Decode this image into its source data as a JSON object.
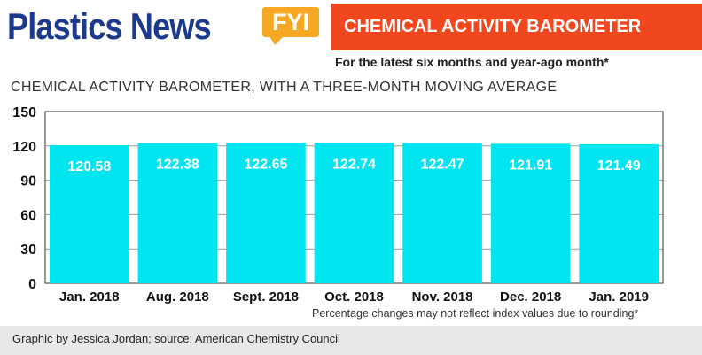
{
  "header": {
    "brand": "Plastics News",
    "badge": "FYI",
    "banner_title": "CHEMICAL ACTIVITY BAROMETER",
    "subtitle": "For the latest six months and year-ago month*"
  },
  "chart_data": {
    "type": "bar",
    "title": "CHEMICAL ACTIVITY BAROMETER, WITH A THREE-MONTH MOVING AVERAGE",
    "categories": [
      "Jan. 2018",
      "Aug. 2018",
      "Sept. 2018",
      "Oct. 2018",
      "Nov. 2018",
      "Dec. 2018",
      "Jan. 2019"
    ],
    "values": [
      120.58,
      122.38,
      122.65,
      122.74,
      122.47,
      121.91,
      121.49
    ],
    "value_labels": [
      "120.58",
      "122.38",
      "122.65",
      "122.74",
      "122.47",
      "121.91",
      "121.49"
    ],
    "yticks": [
      "150",
      "120",
      "90",
      "60",
      "30",
      "0"
    ],
    "ylim": [
      0,
      150
    ],
    "grid": true,
    "bar_color": "#00e5f0"
  },
  "footer": {
    "note": "Percentage changes may not reflect index values due to rounding*",
    "credit": "Graphic by Jessica Jordan; source: American Chemistry Council"
  }
}
